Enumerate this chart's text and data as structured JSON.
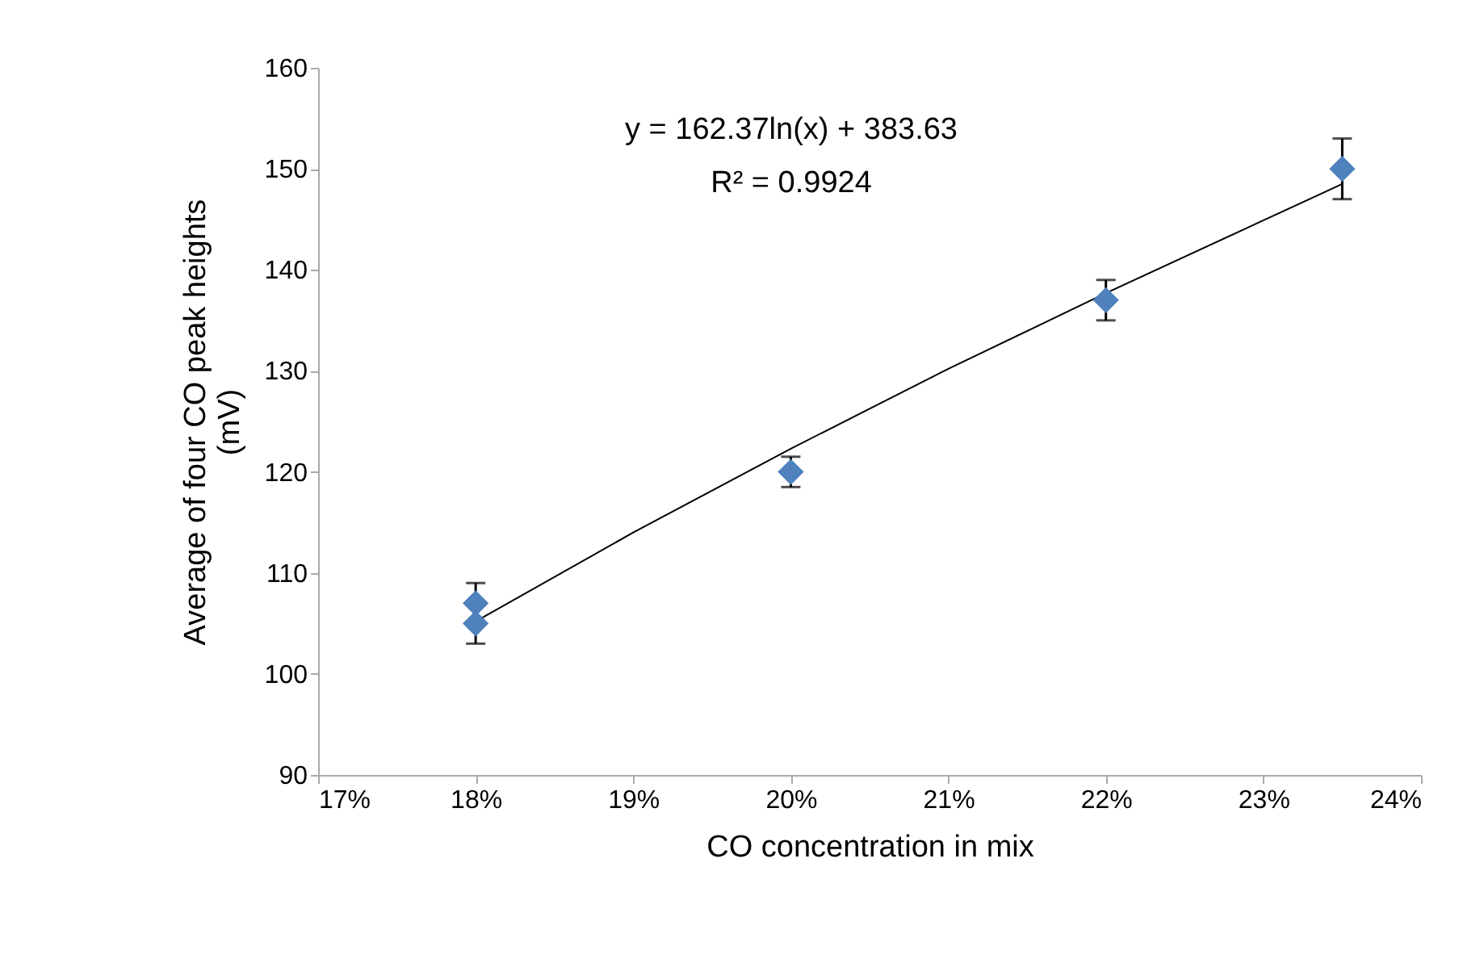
{
  "chart_data": {
    "type": "scatter",
    "xlabel": "CO concentration in mix",
    "ylabel": "Average of four CO peak heights (mV)",
    "annotations": [
      "y = 162.37ln(x) + 383.63",
      "R² = 0.9924"
    ],
    "series": [
      {
        "color": "#4f81bd",
        "x": [
          0.18,
          0.18,
          0.2,
          0.22,
          0.235
        ],
        "values": [
          107,
          105,
          120,
          137,
          150
        ],
        "errors": [
          2,
          2,
          1.5,
          2,
          3
        ],
        "marker": "diamond"
      },
      {
        "type": "line",
        "color": "#000000",
        "x": [
          0.18,
          0.19,
          0.2,
          0.21,
          0.22,
          0.23,
          0.235
        ],
        "values": [
          105.2,
          114,
          122.3,
          130.2,
          137.7,
          144.9,
          148.5
        ],
        "marker": "none",
        "line_style": "solid"
      }
    ],
    "xlim": [
      0.17,
      0.24
    ],
    "xticks": [
      {
        "value": 0.17,
        "label": "17%"
      },
      {
        "value": 0.18,
        "label": "18%"
      },
      {
        "value": 0.19,
        "label": "19%"
      },
      {
        "value": 0.2,
        "label": "20%"
      },
      {
        "value": 0.21,
        "label": "21%"
      },
      {
        "value": 0.22,
        "label": "22%"
      },
      {
        "value": 0.23,
        "label": "23%"
      },
      {
        "value": 0.24,
        "label": "24%"
      }
    ],
    "ylim": [
      90,
      160
    ],
    "yticks": [
      90,
      100,
      110,
      120,
      130,
      140,
      150,
      160
    ],
    "grid": false,
    "legend": false
  }
}
